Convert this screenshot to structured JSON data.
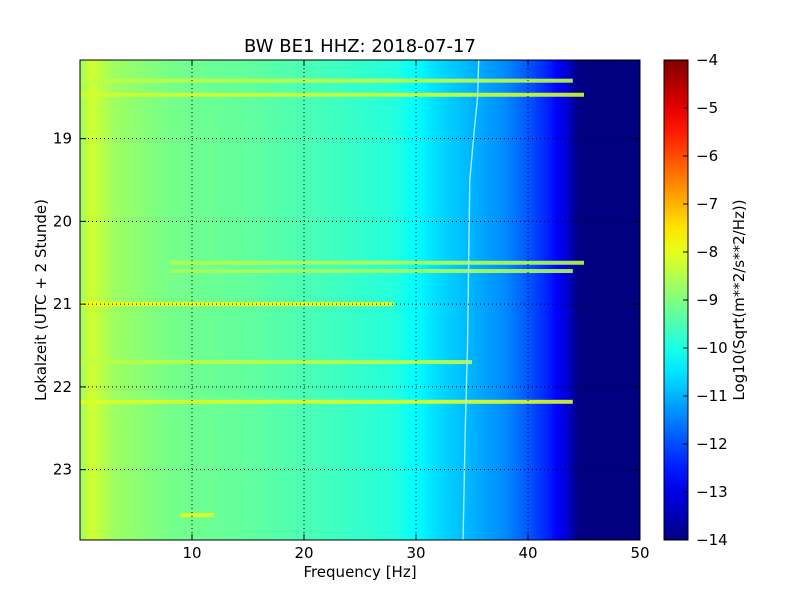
{
  "chart_data": {
    "type": "heatmap",
    "title": "BW BE1 HHZ: 2018-07-17",
    "xlabel": "Frequency [Hz]",
    "ylabel": "Lokalzeit (UTC + 2 Stunde)",
    "xlim": [
      0,
      50
    ],
    "ylim": [
      18.05,
      23.85
    ],
    "y_inverted": true,
    "grid": true,
    "x_ticks": [
      10,
      20,
      30,
      40,
      50
    ],
    "y_ticks": [
      19,
      20,
      21,
      22,
      23
    ],
    "colorbar": {
      "label": "Log10(Sqrt(m**2/s**2/Hz))",
      "colormap": "jet",
      "range": [
        -14,
        -4
      ],
      "ticks": [
        -4,
        -5,
        -6,
        -7,
        -8,
        -9,
        -10,
        -11,
        -12,
        -13,
        -14
      ]
    },
    "frequency_profile": [
      {
        "freq": 0,
        "value": -8.7
      },
      {
        "freq": 1,
        "value": -8.2
      },
      {
        "freq": 3,
        "value": -8.7
      },
      {
        "freq": 8,
        "value": -9.1
      },
      {
        "freq": 15,
        "value": -9.3
      },
      {
        "freq": 22,
        "value": -9.6
      },
      {
        "freq": 28,
        "value": -9.9
      },
      {
        "freq": 32,
        "value": -10.6
      },
      {
        "freq": 35,
        "value": -11.0
      },
      {
        "freq": 38,
        "value": -11.4
      },
      {
        "freq": 40,
        "value": -11.9
      },
      {
        "freq": 42,
        "value": -12.5
      },
      {
        "freq": 43.5,
        "value": -13.2
      },
      {
        "freq": 44.5,
        "value": -14
      },
      {
        "freq": 50,
        "value": -14
      }
    ],
    "spectral_line": [
      {
        "time": 18.05,
        "freq": 35.6
      },
      {
        "time": 18.5,
        "freq": 35.5
      },
      {
        "time": 18.9,
        "freq": 35.2
      },
      {
        "time": 19.5,
        "freq": 34.8
      },
      {
        "time": 20.5,
        "freq": 34.7
      },
      {
        "time": 21.5,
        "freq": 34.6
      },
      {
        "time": 22.5,
        "freq": 34.4
      },
      {
        "time": 23.85,
        "freq": 34.2
      }
    ],
    "high_energy_bands": [
      {
        "time": 18.3,
        "freq_range": [
          0,
          44
        ],
        "value": -8.4
      },
      {
        "time": 18.47,
        "freq_range": [
          0,
          45
        ],
        "value": -8.2
      },
      {
        "time": 20.5,
        "freq_range": [
          8,
          45
        ],
        "value": -8.5
      },
      {
        "time": 20.6,
        "freq_range": [
          8,
          44
        ],
        "value": -8.6
      },
      {
        "time": 21.0,
        "freq_range": [
          0,
          28
        ],
        "value": -7.8
      },
      {
        "time": 21.7,
        "freq_range": [
          0,
          35
        ],
        "value": -8.4
      },
      {
        "time": 22.18,
        "freq_range": [
          0,
          44
        ],
        "value": -8.1
      },
      {
        "time": 23.55,
        "freq_range": [
          9,
          12
        ],
        "value": -8.0
      }
    ]
  }
}
